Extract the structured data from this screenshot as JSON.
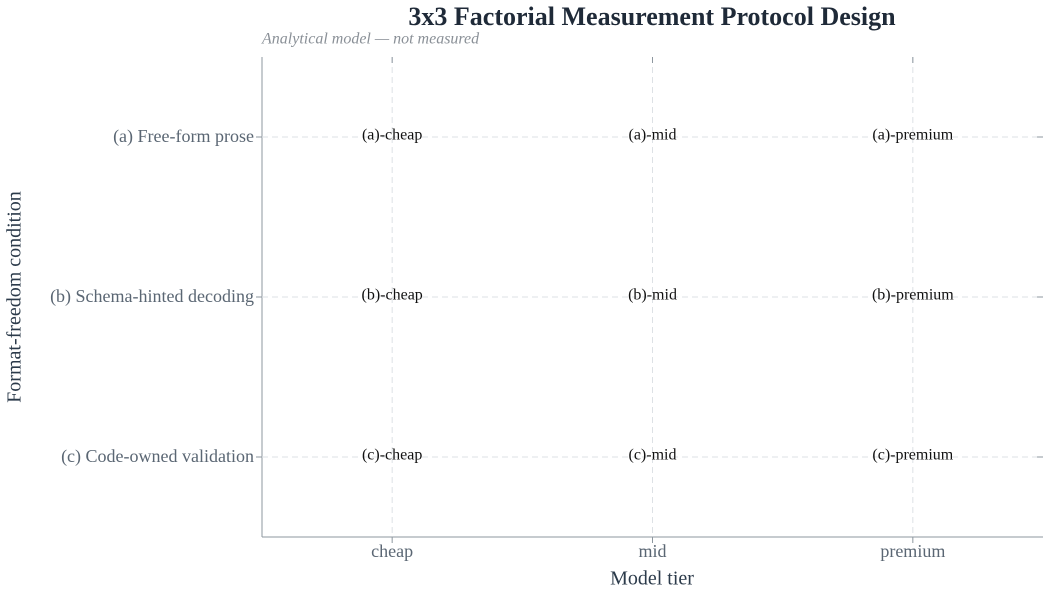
{
  "chart_data": {
    "type": "matrix",
    "title": "3x3 Factorial Measurement Protocol Design",
    "subtitle": "Analytical model — not measured",
    "x_label": "Model tier",
    "y_label": "Format-freedom condition",
    "x_categories": [
      "cheap",
      "mid",
      "premium"
    ],
    "y_categories": [
      "(a) Free-form prose",
      "(b) Schema-hinted decoding",
      "(c) Code-owned validation"
    ],
    "cells": [
      [
        "(a)-cheap",
        "(a)-mid",
        "(a)-premium"
      ],
      [
        "(b)-cheap",
        "(b)-mid",
        "(b)-premium"
      ],
      [
        "(c)-cheap",
        "(c)-mid",
        "(c)-premium"
      ]
    ],
    "grid": true
  }
}
